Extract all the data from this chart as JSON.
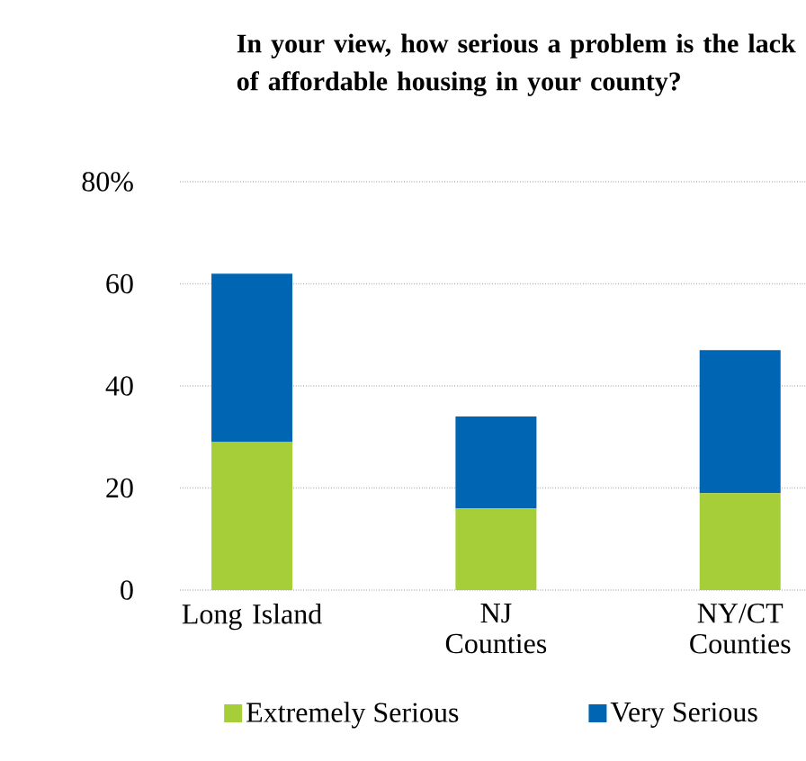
{
  "chart_data": {
    "type": "bar",
    "title": "In your view, how serious a problem is the lack of affordable housing in your county?",
    "categories": [
      "Long Island",
      "NJ Counties",
      "NY/CT Counties"
    ],
    "series": [
      {
        "name": "Extremely Serious",
        "color": "#a6ce39",
        "values": [
          29,
          16,
          19
        ]
      },
      {
        "name": "Very Serious",
        "color": "#0066b3",
        "values": [
          33,
          18,
          28
        ]
      }
    ],
    "stacked": true,
    "ylim": [
      0,
      80
    ],
    "yticks": [
      0,
      20,
      40,
      60,
      {
        "value": 80,
        "label": "80%"
      }
    ],
    "grid": "y",
    "legend": "bottom"
  }
}
